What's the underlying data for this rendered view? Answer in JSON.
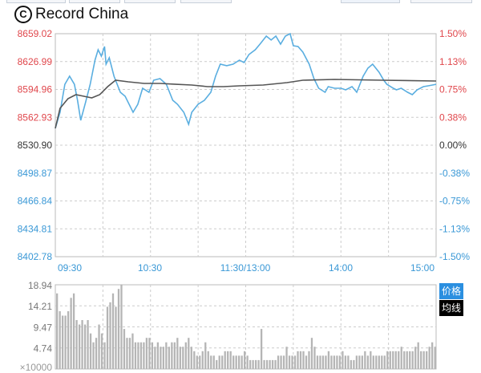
{
  "watermark": {
    "text": "Record China"
  },
  "legend": {
    "price": "价格",
    "average": "均线",
    "price_color": "#2b8fe0",
    "average_color": "#000000"
  },
  "colors": {
    "up": "#e0474c",
    "down": "#3a98d6",
    "neutral": "#333333",
    "price_line": "#5aaee0",
    "avg_line": "#555555",
    "volume": "#b5b5b5"
  },
  "chart_data": [
    {
      "type": "line",
      "ylim": [
        8402.78,
        8659.02
      ],
      "yticks_left": [
        "8659.02",
        "8626.99",
        "8594.96",
        "8562.93",
        "8530.90",
        "8498.87",
        "8466.84",
        "8434.81",
        "8402.78"
      ],
      "yticks_right": [
        "1.50%",
        "1.13%",
        "0.75%",
        "0.38%",
        "0.00%",
        "-0.38%",
        "-0.75%",
        "-1.13%",
        "-1.50%"
      ],
      "base": 8530.9,
      "xticks": [
        "09:30",
        "10:30",
        "11:30/13:00",
        "14:00",
        "15:00"
      ],
      "grid": true,
      "series": [
        {
          "name": "价格",
          "points": [
            [
              "09:30",
              8550.3
            ],
            [
              "09:33",
              8568.7
            ],
            [
              "09:36",
              8600.9
            ],
            [
              "09:39",
              8610.2
            ],
            [
              "09:42",
              8600.9
            ],
            [
              "09:44",
              8582.5
            ],
            [
              "09:46",
              8559.5
            ],
            [
              "09:49",
              8579.7
            ],
            [
              "09:52",
              8600.9
            ],
            [
              "09:55",
              8628.6
            ],
            [
              "09:57",
              8640.6
            ],
            [
              "09:59",
              8633.2
            ],
            [
              "10:01",
              8644.3
            ],
            [
              "10:02",
              8624.0
            ],
            [
              "10:04",
              8631.4
            ],
            [
              "10:07",
              8610.2
            ],
            [
              "10:11",
              8591.7
            ],
            [
              "10:14",
              8587.1
            ],
            [
              "10:19",
              8568.7
            ],
            [
              "10:22",
              8577.9
            ],
            [
              "10:25",
              8596.3
            ],
            [
              "10:29",
              8591.7
            ],
            [
              "10:32",
              8605.6
            ],
            [
              "10:36",
              8607.4
            ],
            [
              "10:40",
              8600.9
            ],
            [
              "10:44",
              8582.5
            ],
            [
              "10:47",
              8577.9
            ],
            [
              "10:51",
              8568.7
            ],
            [
              "10:54",
              8554.9
            ],
            [
              "10:56",
              8568.7
            ],
            [
              "11:00",
              8577.9
            ],
            [
              "11:04",
              8582.5
            ],
            [
              "11:08",
              8591.7
            ],
            [
              "11:11",
              8610.2
            ],
            [
              "11:14",
              8624.0
            ],
            [
              "11:18",
              8622.2
            ],
            [
              "11:22",
              8624.0
            ],
            [
              "11:26",
              8628.6
            ],
            [
              "11:29",
              8625.8
            ],
            [
              "13:02",
              8635.1
            ],
            [
              "13:06",
              8640.6
            ],
            [
              "13:09",
              8647.0
            ],
            [
              "13:13",
              8656.3
            ],
            [
              "13:16",
              8651.7
            ],
            [
              "13:19",
              8656.3
            ],
            [
              "13:22",
              8647.0
            ],
            [
              "13:25",
              8656.3
            ],
            [
              "13:28",
              8659.0
            ],
            [
              "13:30",
              8645.2
            ],
            [
              "13:33",
              8644.3
            ],
            [
              "13:36",
              8637.8
            ],
            [
              "13:40",
              8624.0
            ],
            [
              "13:43",
              8607.4
            ],
            [
              "13:46",
              8596.3
            ],
            [
              "13:50",
              8591.7
            ],
            [
              "13:52",
              8598.2
            ],
            [
              "13:56",
              8596.3
            ],
            [
              "14:00",
              8596.3
            ],
            [
              "14:03",
              8594.5
            ],
            [
              "14:07",
              8598.2
            ],
            [
              "14:10",
              8591.7
            ],
            [
              "14:14",
              8610.2
            ],
            [
              "14:17",
              8619.4
            ],
            [
              "14:20",
              8624.0
            ],
            [
              "14:24",
              8614.8
            ],
            [
              "14:27",
              8605.6
            ],
            [
              "14:29",
              8600.9
            ],
            [
              "14:33",
              8596.3
            ],
            [
              "14:35",
              8594.5
            ],
            [
              "14:38",
              8596.3
            ],
            [
              "14:42",
              8591.7
            ],
            [
              "14:45",
              8589.0
            ],
            [
              "14:48",
              8594.5
            ],
            [
              "14:52",
              8598.2
            ],
            [
              "14:55",
              8599.1
            ],
            [
              "15:00",
              8600.9
            ]
          ]
        },
        {
          "name": "均线",
          "points": [
            [
              "09:30",
              8550.3
            ],
            [
              "09:33",
              8573.3
            ],
            [
              "09:38",
              8584.4
            ],
            [
              "09:43",
              8589.0
            ],
            [
              "09:48",
              8587.1
            ],
            [
              "09:53",
              8585.3
            ],
            [
              "09:58",
              8589.0
            ],
            [
              "10:03",
              8598.2
            ],
            [
              "10:08",
              8605.6
            ],
            [
              "10:16",
              8603.7
            ],
            [
              "10:26",
              8601.9
            ],
            [
              "10:36",
              8601.9
            ],
            [
              "10:46",
              8600.9
            ],
            [
              "10:56",
              8600.0
            ],
            [
              "11:06",
              8598.2
            ],
            [
              "11:16",
              8598.2
            ],
            [
              "11:26",
              8599.1
            ],
            [
              "13:11",
              8600.0
            ],
            [
              "13:26",
              8602.8
            ],
            [
              "13:36",
              8605.6
            ],
            [
              "13:56",
              8606.5
            ],
            [
              "14:26",
              8605.6
            ],
            [
              "15:00",
              8604.6
            ]
          ]
        }
      ]
    },
    {
      "type": "bar",
      "ylim": [
        0,
        18.94
      ],
      "yticks": [
        "18.94",
        "14.21",
        "9.47",
        "4.74"
      ],
      "yunit": "×10000",
      "values": [
        17,
        13,
        12,
        12,
        13,
        16,
        17,
        11,
        10,
        11,
        10,
        11,
        8,
        6,
        7,
        10,
        8,
        6,
        14,
        15,
        17,
        14,
        18,
        19,
        9,
        7,
        7,
        8,
        6,
        6,
        6,
        6,
        7,
        7,
        6,
        5,
        6,
        5,
        5,
        6,
        5,
        6,
        6,
        7,
        5,
        5,
        6,
        7,
        5,
        4,
        3,
        3,
        4,
        6,
        4,
        3,
        3,
        2,
        3,
        3,
        4,
        4,
        4,
        3,
        3,
        3,
        3,
        4,
        3,
        2,
        2,
        2,
        2,
        9,
        2,
        2,
        2,
        2,
        2,
        3,
        3,
        3,
        5,
        3,
        3,
        3,
        4,
        4,
        4,
        3,
        4,
        7,
        5,
        3,
        3,
        3,
        3,
        4,
        3,
        3,
        3,
        3,
        4,
        3,
        3,
        2,
        2,
        3,
        3,
        3,
        4,
        3,
        4,
        3,
        3,
        3,
        3,
        3,
        4,
        4,
        4,
        4,
        4,
        5,
        4,
        4,
        4,
        4,
        5,
        6,
        4,
        4,
        4,
        5,
        6,
        5
      ]
    }
  ]
}
